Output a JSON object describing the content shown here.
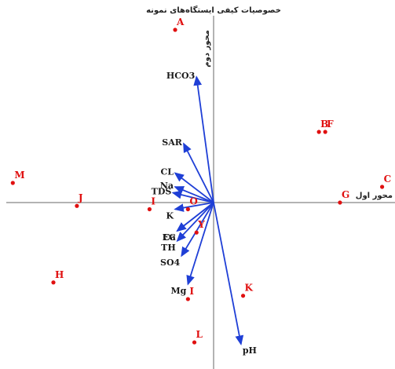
{
  "chart_data": {
    "type": "scatter",
    "subtype": "pca-biplot",
    "title": "خصوصیات کیفی ایستگاه‌های نمونه",
    "xlabel": "محور اول",
    "ylabel": "محور دوم",
    "grid": false,
    "legend": "none",
    "colors": {
      "points": "#e01010",
      "vectors": "#1f3fd6",
      "axes": "#9a9a9a"
    },
    "xlim": [
      -1.0,
      0.85
    ],
    "ylim": [
      -1.0,
      1.0
    ],
    "vectors": [
      {
        "name": "HCO3",
        "x": -0.08,
        "y": 0.64
      },
      {
        "name": "SAR",
        "x": -0.14,
        "y": 0.3
      },
      {
        "name": "CL",
        "x": -0.18,
        "y": 0.15
      },
      {
        "name": "Na",
        "x": -0.18,
        "y": 0.08
      },
      {
        "name": "TDS",
        "x": -0.19,
        "y": 0.05
      },
      {
        "name": "K",
        "x": -0.18,
        "y": -0.04
      },
      {
        "name": "EC",
        "x": -0.17,
        "y": -0.17
      },
      {
        "name": "Ca",
        "x": -0.17,
        "y": -0.17
      },
      {
        "name": "TH",
        "x": -0.17,
        "y": -0.23
      },
      {
        "name": "SO4",
        "x": -0.15,
        "y": -0.32
      },
      {
        "name": "Mg",
        "x": -0.12,
        "y": -0.49
      },
      {
        "name": "pH",
        "x": 0.13,
        "y": -0.85
      }
    ],
    "points": [
      {
        "name": "A",
        "x": -0.18,
        "y": 0.88
      },
      {
        "name": "B",
        "x": 0.5,
        "y": 0.36
      },
      {
        "name": "F",
        "x": 0.53,
        "y": 0.36
      },
      {
        "name": "C",
        "x": 0.8,
        "y": 0.08
      },
      {
        "name": "G",
        "x": 0.6,
        "y": 0.0
      },
      {
        "name": "M",
        "x": -0.94,
        "y": 0.1
      },
      {
        "name": "J",
        "x": -0.64,
        "y": -0.02
      },
      {
        "name": "I",
        "x": -0.3,
        "y": -0.04
      },
      {
        "name": "O",
        "x": -0.12,
        "y": -0.04
      },
      {
        "name": "H",
        "x": -0.75,
        "y": -0.48
      },
      {
        "name": "Y",
        "x": -0.08,
        "y": -0.18
      },
      {
        "name": "K",
        "x": 0.14,
        "y": -0.56
      },
      {
        "name": "I",
        "x": -0.12,
        "y": -0.58
      },
      {
        "name": "L",
        "x": -0.09,
        "y": -0.84
      }
    ]
  }
}
